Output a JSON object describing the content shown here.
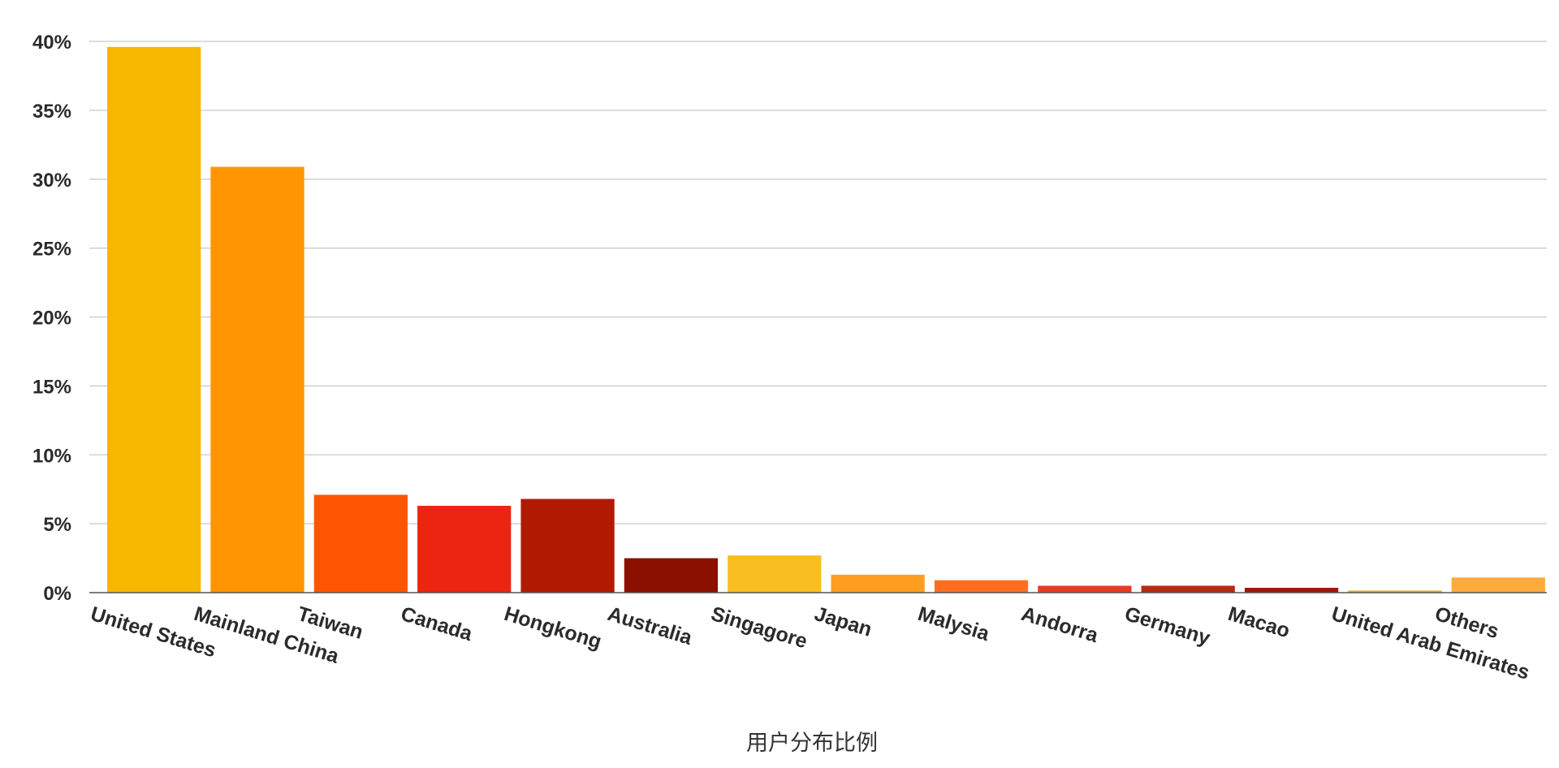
{
  "chart_data": {
    "type": "bar",
    "title": "",
    "xlabel": "用户分布比例",
    "ylabel": "",
    "ylim": [
      0,
      40
    ],
    "y_ticks": [
      "0%",
      "5%",
      "10%",
      "15%",
      "20%",
      "25%",
      "30%",
      "35%",
      "40%"
    ],
    "y_tick_values": [
      0,
      5,
      10,
      15,
      20,
      25,
      30,
      35,
      40
    ],
    "grid": true,
    "legend": "none",
    "categories": [
      "United States",
      "Mainland China",
      "Taiwan",
      "Canada",
      "Hongkong",
      "Australia",
      "Singagore",
      "Japan",
      "Malysia",
      "Andorra",
      "Germany",
      "Macao",
      "United Arab Emirates",
      "Others"
    ],
    "values": [
      39.6,
      30.9,
      7.1,
      6.3,
      6.8,
      2.5,
      2.7,
      1.3,
      0.9,
      0.5,
      0.5,
      0.35,
      0.15,
      1.1
    ],
    "colors": [
      "#F6B800",
      "#FF9500",
      "#FF5500",
      "#EC2510",
      "#B21A00",
      "#8B1000",
      "#F9BE22",
      "#FF9E1E",
      "#FF6E1E",
      "#E83A20",
      "#B82A10",
      "#9E1608",
      "#E6B01A",
      "#FFAA3C"
    ]
  }
}
